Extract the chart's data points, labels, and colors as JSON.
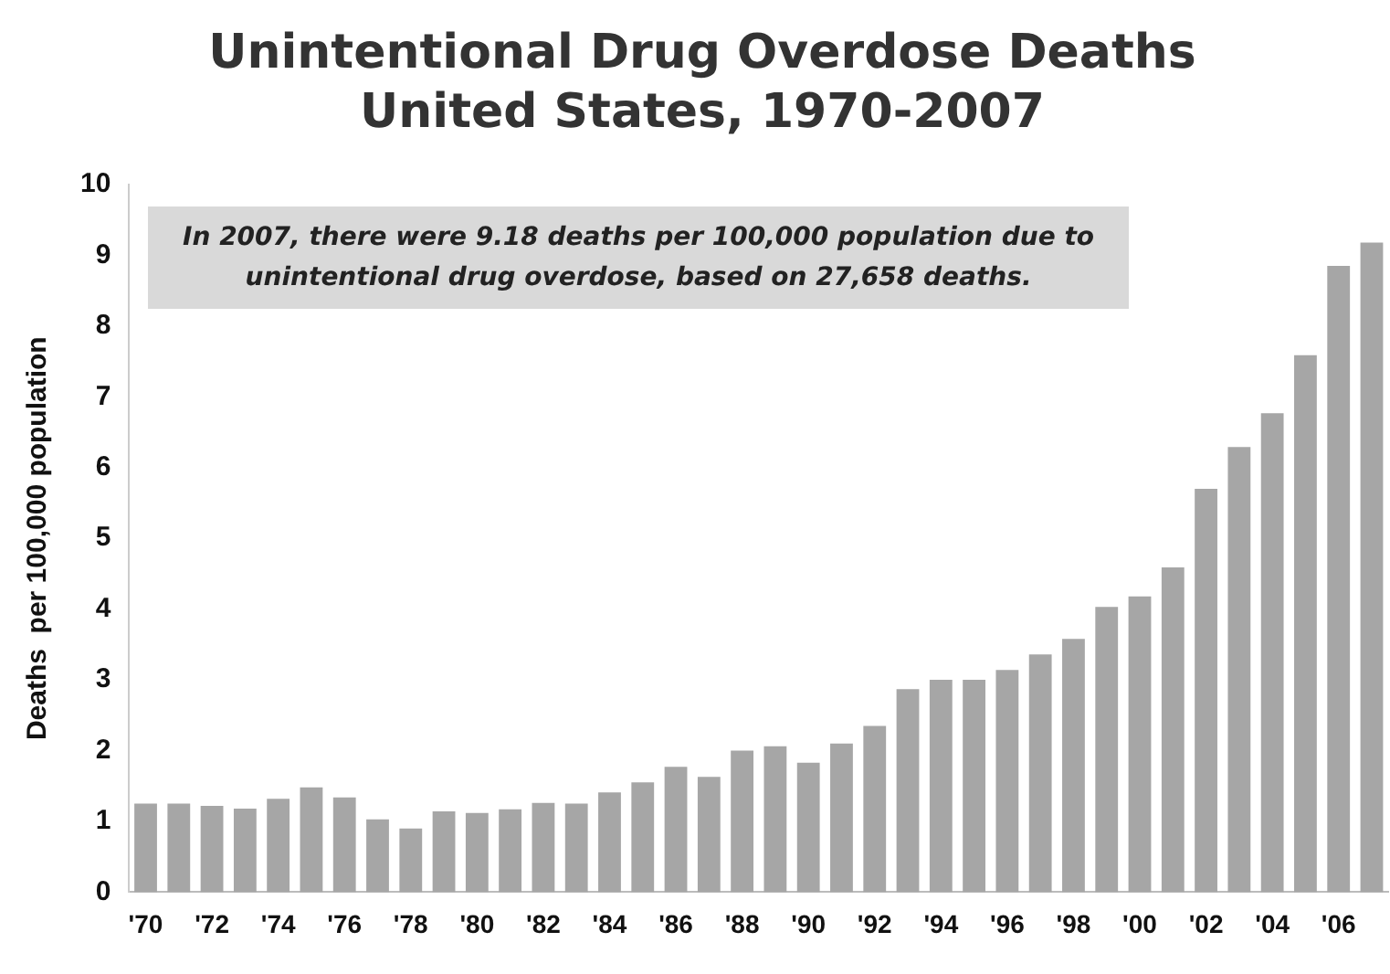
{
  "chart_data": {
    "type": "bar",
    "title": "Unintentional Drug Overdose Deaths",
    "subtitle": "United States, 1970-2007",
    "ylabel": "Deaths  per 100,000 population",
    "categories": [
      "'70",
      null,
      "'72",
      null,
      "'74",
      null,
      "'76",
      null,
      "'78",
      null,
      "'80",
      null,
      "'82",
      null,
      "'84",
      null,
      "'86",
      null,
      "'88",
      null,
      "'90",
      null,
      "'92",
      null,
      "'94",
      null,
      "'96",
      null,
      "'98",
      null,
      "'00",
      null,
      "'02",
      null,
      "'04",
      null,
      "'06",
      null
    ],
    "values": [
      1.25,
      1.25,
      1.22,
      1.18,
      1.32,
      1.48,
      1.34,
      1.03,
      0.9,
      1.14,
      1.12,
      1.17,
      1.26,
      1.25,
      1.41,
      1.55,
      1.77,
      1.63,
      2.0,
      2.06,
      1.83,
      2.1,
      2.35,
      2.87,
      3.0,
      3.0,
      3.14,
      3.36,
      3.58,
      4.03,
      4.18,
      4.59,
      5.7,
      6.29,
      6.77,
      7.59,
      8.85,
      9.18
    ],
    "color": "#a6a6a6",
    "ylim": [
      0,
      10
    ],
    "yticks": [
      0,
      1,
      2,
      3,
      4,
      5,
      6,
      7,
      8,
      9,
      10
    ],
    "grid": false,
    "legend": false,
    "annotations": [
      "In 2007, there were 9.18 deaths per 100,000 population due to unintentional drug overdose, based on 27,658 deaths."
    ]
  }
}
